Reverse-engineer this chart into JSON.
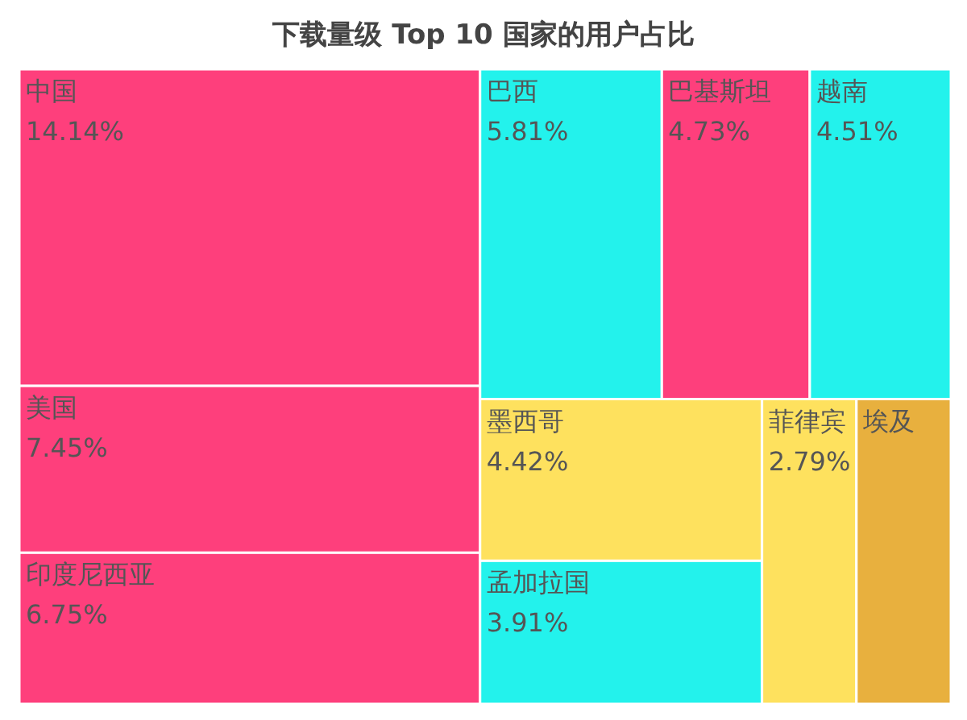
{
  "chart_data": {
    "type": "other",
    "title": "下载量级 Top 10 国家的用户占比",
    "categories": [
      "中国",
      "美国",
      "印度尼西亚",
      "巴西",
      "巴基斯坦",
      "越南",
      "墨西哥",
      "孟加拉国",
      "菲律宾",
      "埃及"
    ],
    "values": [
      14.14,
      7.45,
      6.75,
      5.81,
      4.73,
      4.51,
      4.42,
      3.91,
      2.79,
      null
    ],
    "value_labels": [
      "14.14%",
      "7.45%",
      "6.75%",
      "5.81%",
      "4.73%",
      "4.51%",
      "4.42%",
      "3.91%",
      "2.79%",
      null
    ],
    "colors": [
      "#fe3f7c",
      "#fe3f7c",
      "#fe3f7c",
      "#23f2ec",
      "#fe3f7c",
      "#23f2ec",
      "#fee15e",
      "#23f2ec",
      "#fee15e",
      "#e8b03e"
    ]
  }
}
